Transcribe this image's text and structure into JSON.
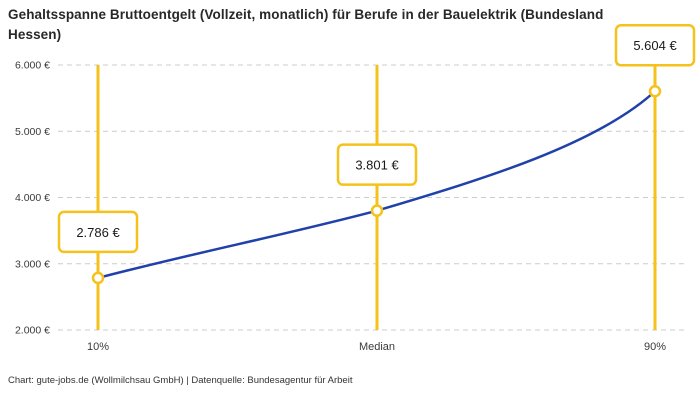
{
  "header": {
    "title": "Gehaltsspanne Bruttoentgelt (Vollzeit, monatlich) für Berufe in der Bauelektrik (Bundesland Hessen)"
  },
  "footer": {
    "text": "Chart: gute-jobs.de (Wollmilchsau GmbH) | Datenquelle: Bundesagentur für Arbeit"
  },
  "colors": {
    "accent_yellow": "#F5C21B",
    "line_blue": "#2040AA",
    "grid": "#CCCCCC",
    "tick_text": "#3A3A3A",
    "label_text": "#1A1A1A",
    "marker_fill": "#FFFFFF"
  },
  "chart_data": {
    "type": "line",
    "title": "Gehaltsspanne Bruttoentgelt (Vollzeit, monatlich) für Berufe in der Bauelektrik (Bundesland Hessen)",
    "categories": [
      "10%",
      "Median",
      "90%"
    ],
    "values": [
      2786,
      3801,
      5604
    ],
    "value_labels": [
      "2.786 €",
      "3.801 €",
      "5.604 €"
    ],
    "xlabel": "",
    "ylabel": "",
    "ylim": [
      2000,
      6000
    ],
    "yticks": [
      2000,
      3000,
      4000,
      5000,
      6000
    ],
    "ytick_labels": [
      "2.000 €",
      "3.000 €",
      "4.000 €",
      "5.000 €",
      "6.000 €"
    ],
    "grid": "horizontal-dashed",
    "legend": "none",
    "marker_style": "open-circle",
    "annotation_style": "value labels in yellow-outlined white boxes above each point, connected by vertical yellow rules",
    "source": "Bundesagentur für Arbeit"
  }
}
